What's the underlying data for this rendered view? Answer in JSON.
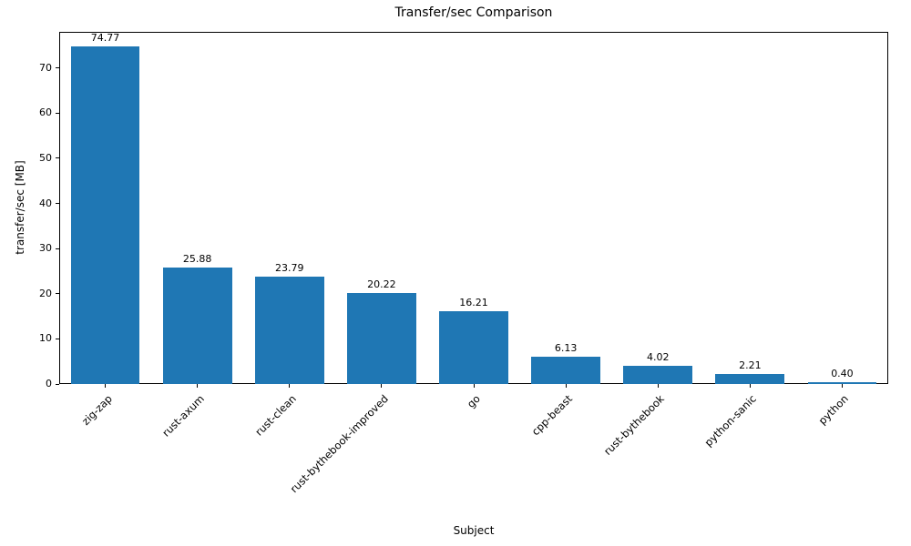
{
  "title": "Transfer/sec Comparison",
  "chart_data": {
    "type": "bar",
    "title": "Transfer/sec Comparison",
    "xlabel": "Subject",
    "ylabel": "transfer/sec [MB]",
    "categories": [
      "zig-zap",
      "rust-axum",
      "rust-clean",
      "rust-bythebook-improved",
      "go",
      "cpp-beast",
      "rust-bythebook",
      "python-sanic",
      "python"
    ],
    "values": [
      74.77,
      25.88,
      23.79,
      20.22,
      16.21,
      6.13,
      4.02,
      2.21,
      0.4
    ],
    "value_labels": [
      "74.77",
      "25.88",
      "23.79",
      "20.22",
      "16.21",
      "6.13",
      "4.02",
      "2.21",
      "0.40"
    ],
    "ylim": [
      0,
      78
    ],
    "yticks": [
      0,
      10,
      20,
      30,
      40,
      50,
      60,
      70
    ],
    "bar_color": "#1f77b4",
    "grid": false,
    "legend_position": "none",
    "x_tick_rotation_deg": 45
  }
}
